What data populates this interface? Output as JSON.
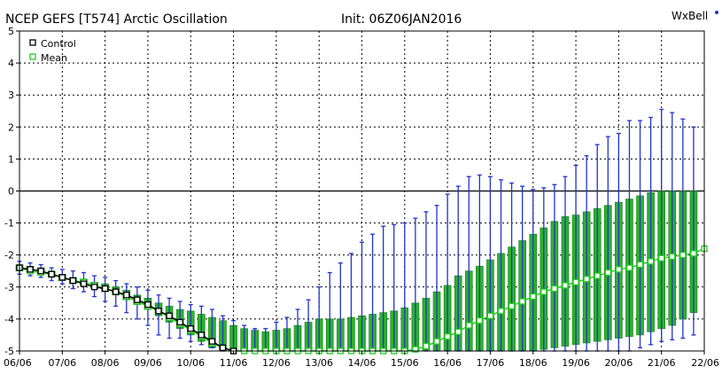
{
  "chart_data": {
    "type": "line",
    "title": "NCEP GEFS [T574] Arctic Oscillation",
    "init_label": "Init: 06Z06JAN2016",
    "brand_text": "WxBell",
    "x_tick_labels": [
      "06/06",
      "07/06",
      "08/06",
      "09/06",
      "10/06",
      "11/06",
      "12/06",
      "13/06",
      "14/06",
      "15/06",
      "16/06",
      "17/06",
      "18/06",
      "19/06",
      "20/06",
      "21/06",
      "22/06"
    ],
    "y_tick_labels": [
      "5",
      "4",
      "3",
      "2",
      "1",
      "0",
      "-1",
      "-2",
      "-3",
      "-4",
      "-5"
    ],
    "ylim": [
      -5,
      5
    ],
    "xlim_days": [
      0,
      16
    ],
    "grid": true,
    "legend_position": "top-left",
    "colors": {
      "control": "#000000",
      "mean_line": "#22cc22",
      "spread_box": "#2db22d",
      "whisker": "#2233cc",
      "zero_line": "#000000",
      "grid": "#000000"
    },
    "series": [
      {
        "name": "Control",
        "x_days": [
          0,
          0.25,
          0.5,
          0.75,
          1,
          1.25,
          1.5,
          1.75,
          2,
          2.25,
          2.5,
          2.75,
          3,
          3.25,
          3.5,
          3.75,
          4,
          4.25,
          4.5,
          4.75,
          5
        ],
        "values": [
          -2.4,
          -2.45,
          -2.5,
          -2.6,
          -2.7,
          -2.8,
          -2.9,
          -3.0,
          -3.05,
          -3.15,
          -3.25,
          -3.4,
          -3.55,
          -3.75,
          -3.9,
          -4.1,
          -4.3,
          -4.5,
          -4.7,
          -4.9,
          -5.0
        ]
      },
      {
        "name": "Mean",
        "x_days": [
          0,
          0.25,
          0.5,
          0.75,
          1,
          1.25,
          1.5,
          1.75,
          2,
          2.25,
          2.5,
          2.75,
          3,
          3.25,
          3.5,
          3.75,
          4,
          4.25,
          4.5,
          4.75,
          5,
          5.25,
          5.5,
          5.75,
          6,
          6.25,
          6.5,
          6.75,
          7,
          7.25,
          7.5,
          7.75,
          8,
          8.25,
          8.5,
          8.75,
          9,
          9.25,
          9.5,
          9.75,
          10,
          10.25,
          10.5,
          10.75,
          11,
          11.25,
          11.5,
          11.75,
          12,
          12.25,
          12.5,
          12.75,
          13,
          13.25,
          13.5,
          13.75,
          14,
          14.25,
          14.5,
          14.75,
          15,
          15.25,
          15.5,
          15.75,
          16
        ],
        "values": [
          -2.4,
          -2.5,
          -2.55,
          -2.6,
          -2.7,
          -2.8,
          -2.85,
          -2.95,
          -3.05,
          -3.15,
          -3.3,
          -3.45,
          -3.6,
          -3.75,
          -3.95,
          -4.15,
          -4.35,
          -4.55,
          -4.75,
          -4.9,
          -5.0,
          -5.0,
          -5.0,
          -5.0,
          -5.0,
          -5.0,
          -5.0,
          -5.0,
          -5.0,
          -5.0,
          -5.0,
          -5.0,
          -5.0,
          -5.0,
          -5.0,
          -5.0,
          -5.0,
          -4.95,
          -4.85,
          -4.7,
          -4.55,
          -4.4,
          -4.2,
          -4.05,
          -3.9,
          -3.75,
          -3.6,
          -3.45,
          -3.3,
          -3.15,
          -3.05,
          -2.95,
          -2.85,
          -2.75,
          -2.65,
          -2.55,
          -2.45,
          -2.4,
          -2.3,
          -2.2,
          -2.1,
          -2.05,
          -2.0,
          -1.95,
          -1.8
        ]
      }
    ],
    "ensemble_spread": {
      "x_days": [
        0,
        0.25,
        0.5,
        0.75,
        1,
        1.25,
        1.5,
        1.75,
        2,
        2.25,
        2.5,
        2.75,
        3,
        3.25,
        3.5,
        3.75,
        4,
        4.25,
        4.5,
        4.75,
        5,
        5.25,
        5.5,
        5.75,
        6,
        6.25,
        6.5,
        6.75,
        7,
        7.25,
        7.5,
        7.75,
        8,
        8.25,
        8.5,
        8.75,
        9,
        9.25,
        9.5,
        9.75,
        10,
        10.25,
        10.5,
        10.75,
        11,
        11.25,
        11.5,
        11.75,
        12,
        12.25,
        12.5,
        12.75,
        13,
        13.25,
        13.5,
        13.75,
        14,
        14.25,
        14.5,
        14.75,
        15,
        15.25,
        15.5,
        15.75
      ],
      "box_low": [
        -2.5,
        -2.55,
        -2.6,
        -2.7,
        -2.8,
        -2.9,
        -2.95,
        -3.05,
        -3.15,
        -3.25,
        -3.4,
        -3.55,
        -3.7,
        -3.9,
        -4.1,
        -4.3,
        -4.5,
        -4.7,
        -4.9,
        -5.0,
        -5.0,
        -5.0,
        -5.0,
        -5.0,
        -5.0,
        -5.0,
        -5.0,
        -5.0,
        -5.0,
        -5.0,
        -5.0,
        -5.0,
        -5.0,
        -5.0,
        -5.0,
        -5.0,
        -5.0,
        -5.0,
        -5.0,
        -5.0,
        -5.0,
        -5.0,
        -5.0,
        -5.0,
        -5.0,
        -5.0,
        -5.0,
        -5.0,
        -5.0,
        -4.95,
        -4.9,
        -4.85,
        -4.8,
        -4.75,
        -4.7,
        -4.65,
        -4.6,
        -4.55,
        -4.5,
        -4.4,
        -4.3,
        -4.2,
        -4.0,
        -3.8
      ],
      "box_high": [
        -2.3,
        -2.35,
        -2.4,
        -2.5,
        -2.6,
        -2.7,
        -2.75,
        -2.85,
        -2.9,
        -3.0,
        -3.1,
        -3.25,
        -3.35,
        -3.5,
        -3.6,
        -3.7,
        -3.75,
        -3.85,
        -3.95,
        -4.05,
        -4.2,
        -4.3,
        -4.35,
        -4.4,
        -4.35,
        -4.3,
        -4.2,
        -4.1,
        -4.0,
        -4.0,
        -4.0,
        -3.95,
        -3.9,
        -3.85,
        -3.8,
        -3.75,
        -3.65,
        -3.5,
        -3.35,
        -3.15,
        -2.95,
        -2.65,
        -2.5,
        -2.35,
        -2.15,
        -1.95,
        -1.75,
        -1.55,
        -1.35,
        -1.15,
        -0.95,
        -0.8,
        -0.75,
        -0.65,
        -0.55,
        -0.45,
        -0.35,
        -0.25,
        -0.15,
        -0.05,
        0.0,
        0.0,
        0.0,
        0.0
      ],
      "whisker_low": [
        -2.6,
        -2.65,
        -2.7,
        -2.8,
        -2.9,
        -3.05,
        -3.15,
        -3.3,
        -3.45,
        -3.6,
        -3.8,
        -4.0,
        -4.2,
        -4.5,
        -4.6,
        -4.6,
        -4.7,
        -4.8,
        -4.9,
        -5.0,
        -5.0,
        -5.0,
        -5.0,
        -5.0,
        -5.0,
        -5.0,
        -5.0,
        -5.0,
        -5.0,
        -5.0,
        -5.0,
        -5.0,
        -5.0,
        -5.0,
        -5.0,
        -5.0,
        -5.0,
        -5.0,
        -5.0,
        -5.0,
        -5.0,
        -5.0,
        -5.0,
        -5.0,
        -5.0,
        -5.0,
        -5.0,
        -5.0,
        -5.0,
        -5.0,
        -5.0,
        -5.0,
        -5.0,
        -5.0,
        -5.0,
        -5.0,
        -5.0,
        -5.0,
        -4.9,
        -4.8,
        -4.7,
        -4.65,
        -4.6,
        -4.5
      ],
      "whisker_high": [
        -2.2,
        -2.25,
        -2.3,
        -2.4,
        -2.45,
        -2.5,
        -2.55,
        -2.65,
        -2.7,
        -2.8,
        -2.9,
        -3.0,
        -3.1,
        -3.25,
        -3.35,
        -3.45,
        -3.55,
        -3.6,
        -3.7,
        -3.9,
        -4.05,
        -4.2,
        -4.3,
        -4.3,
        -4.1,
        -3.95,
        -3.7,
        -3.4,
        -3.0,
        -2.55,
        -2.25,
        -1.95,
        -1.6,
        -1.35,
        -1.1,
        -1.05,
        -1.0,
        -0.85,
        -0.65,
        -0.45,
        -0.1,
        0.15,
        0.45,
        0.5,
        0.45,
        0.35,
        0.25,
        0.15,
        0.05,
        0.1,
        0.2,
        0.45,
        0.8,
        1.1,
        1.45,
        1.7,
        1.8,
        2.2,
        2.2,
        2.3,
        2.55,
        2.45,
        2.25,
        2.0
      ]
    }
  }
}
